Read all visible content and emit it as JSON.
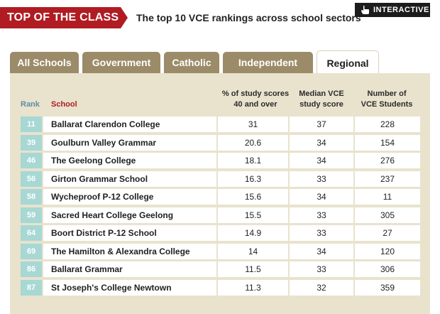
{
  "header": {
    "badge": "TOP OF THE CLASS",
    "subtitle": "The top 10 VCE rankings across school sectors",
    "interactive_label": "INTERACTIVE"
  },
  "tabs": [
    {
      "label": "All Schools",
      "active": false
    },
    {
      "label": "Government",
      "active": false
    },
    {
      "label": "Catholic",
      "active": false
    },
    {
      "label": "Independent",
      "active": false
    },
    {
      "label": "Regional",
      "active": true
    }
  ],
  "table": {
    "headers": {
      "rank": "Rank",
      "school": "School",
      "pct": [
        "% of study scores",
        "40 and over"
      ],
      "median": [
        "Median VCE",
        "study score"
      ],
      "students": [
        "Number of",
        "VCE Students"
      ]
    },
    "rows": [
      {
        "rank": "11",
        "school": "Ballarat Clarendon College",
        "pct": "31",
        "median": "37",
        "students": "228"
      },
      {
        "rank": "39",
        "school": "Goulburn Valley Grammar",
        "pct": "20.6",
        "median": "34",
        "students": "154"
      },
      {
        "rank": "46",
        "school": "The Geelong College",
        "pct": "18.1",
        "median": "34",
        "students": "276"
      },
      {
        "rank": "56",
        "school": "Girton Grammar School",
        "pct": "16.3",
        "median": "33",
        "students": "237"
      },
      {
        "rank": "58",
        "school": "Wycheproof P-12 College",
        "pct": "15.6",
        "median": "34",
        "students": "11"
      },
      {
        "rank": "59",
        "school": "Sacred Heart College Geelong",
        "pct": "15.5",
        "median": "33",
        "students": "305"
      },
      {
        "rank": "64",
        "school": "Boort District P-12 School",
        "pct": "14.9",
        "median": "33",
        "students": "27"
      },
      {
        "rank": "69",
        "school": "The Hamilton & Alexandra College",
        "pct": "14",
        "median": "34",
        "students": "120"
      },
      {
        "rank": "86",
        "school": "Ballarat Grammar",
        "pct": "11.5",
        "median": "33",
        "students": "306"
      },
      {
        "rank": "87",
        "school": "St Joseph's College Newtown",
        "pct": "11.3",
        "median": "32",
        "students": "359"
      }
    ]
  },
  "icons": {
    "interactive": "pointing-hand-icon"
  },
  "colors": {
    "brand_red": "#b01c22",
    "tab_tan": "#9c8b68",
    "panel_beige": "#e9e2cd",
    "rank_teal": "#a7d8d4"
  }
}
